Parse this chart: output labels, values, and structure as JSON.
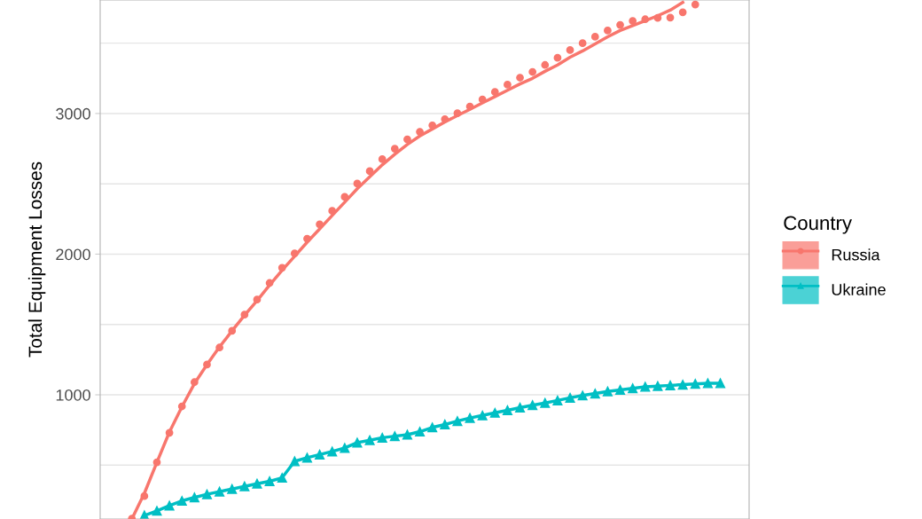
{
  "chart_data": {
    "type": "scatter",
    "ylabel": "Total Equipment Losses",
    "legend_title": "Country",
    "legend": "right",
    "grid": true,
    "tick_labels": "y",
    "categories": [
      null,
      null,
      null,
      null,
      null,
      null,
      null,
      null,
      null,
      null,
      null,
      null,
      null,
      null,
      null,
      null,
      null,
      null,
      null,
      null,
      null,
      null,
      null,
      null,
      null,
      null,
      null,
      null,
      null,
      null,
      null,
      null,
      null,
      null,
      null,
      null,
      null,
      null,
      null,
      null,
      null,
      null,
      null,
      null,
      null,
      null,
      null,
      null
    ],
    "ylim": [
      117,
      3807
    ],
    "yticks": [
      {
        "value": 500,
        "label": null
      },
      1000,
      {
        "value": 1500,
        "label": null
      },
      2000,
      {
        "value": 2500,
        "label": null
      },
      3000,
      {
        "value": 3500,
        "label": null
      }
    ],
    "series": [
      {
        "name": "Russia",
        "marker": "circle",
        "color": "#f8766d",
        "values": [
          120,
          280,
          520,
          730,
          918,
          1090,
          1215,
          1336,
          1455,
          1570,
          1677,
          1795,
          1903,
          2005,
          2110,
          2212,
          2308,
          2407,
          2502,
          2590,
          2675,
          2750,
          2816,
          2870,
          2916,
          2960,
          3002,
          3050,
          3100,
          3153,
          3205,
          3255,
          3296,
          3345,
          3396,
          3451,
          3500,
          3546,
          3590,
          3630,
          3658,
          3670,
          3680,
          3682,
          3720,
          3775,
          null,
          null
        ]
      },
      {
        "type": "line",
        "marker": "none",
        "color": "#f8766d",
        "values": [
          117,
          300,
          520,
          735,
          915,
          1080,
          1215,
          1340,
          1455,
          1565,
          1670,
          1780,
          1885,
          1985,
          2085,
          2180,
          2275,
          2370,
          2465,
          2550,
          2635,
          2710,
          2780,
          2840,
          2890,
          2940,
          2985,
          3030,
          3075,
          3120,
          3165,
          3210,
          3250,
          3300,
          3345,
          3400,
          3445,
          3495,
          3545,
          3590,
          3625,
          3660,
          3695,
          3735,
          3790,
          null,
          null,
          null
        ]
      },
      {
        "name": "Ukraine",
        "type": "line",
        "marker": "triangle",
        "color": "#00bfc4",
        "values": [
          null,
          142,
          175,
          212,
          246,
          270,
          293,
          312,
          330,
          349,
          368,
          385,
          410,
          527,
          553,
          575,
          597,
          622,
          660,
          677,
          695,
          706,
          716,
          738,
          768,
          789,
          813,
          835,
          853,
          872,
          890,
          909,
          926,
          942,
          960,
          979,
          995,
          1009,
          1024,
          1035,
          1046,
          1057,
          1062,
          1067,
          1072,
          1078,
          1082,
          1082
        ]
      }
    ]
  }
}
